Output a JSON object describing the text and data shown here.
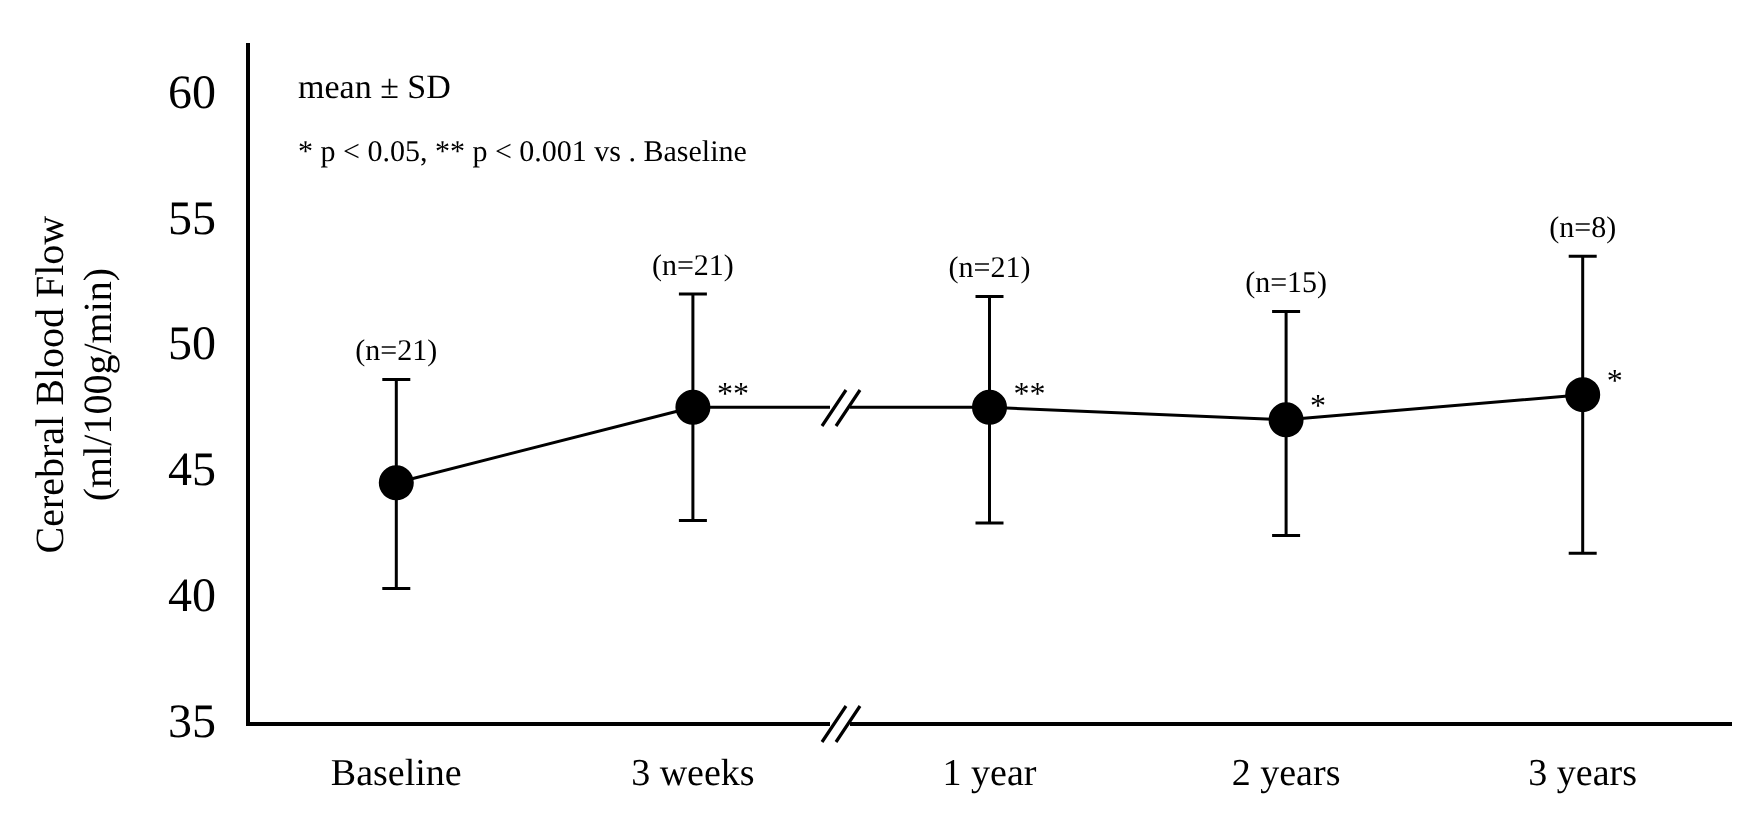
{
  "chart_data": {
    "type": "line",
    "ylabel": "Cerebral Blood Flow\n(ml/100g/min)",
    "categories": [
      "Baseline",
      "3 weeks",
      "1 year",
      "2 years",
      "3 years"
    ],
    "values": [
      44.6,
      47.6,
      47.6,
      47.1,
      48.1
    ],
    "color": "#000000",
    "errors": [
      [
        40.4,
        48.7
      ],
      [
        43.1,
        52.1
      ],
      [
        43.0,
        52.0
      ],
      [
        42.5,
        51.4
      ],
      [
        41.8,
        53.6
      ]
    ],
    "ylim": [
      35,
      62
    ],
    "yticks": [
      35,
      40,
      45,
      50,
      55,
      60
    ],
    "grid": false,
    "legend": false,
    "marker": "circle",
    "line_style": "solid",
    "annotations": [
      "mean ± SD",
      "* p < 0.05, ** p < 0.001 vs . Baseline",
      {
        "text": "(n=21)",
        "x": "Baseline",
        "y": 48.7
      },
      {
        "text": "(n=21)",
        "x": "3 weeks",
        "y": 52.1
      },
      {
        "text": "(n=21)",
        "x": "1 year",
        "y": 52.0
      },
      {
        "text": "(n=15)",
        "x": "2 years",
        "y": 51.4
      },
      {
        "text": "(n=8)",
        "x": "3 years",
        "y": 53.6
      },
      {
        "text": "**",
        "x": "3 weeks",
        "y": 47.6
      },
      {
        "text": "**",
        "x": "1 year",
        "y": 47.6
      },
      {
        "text": "*",
        "x": "2 years",
        "y": 47.1
      },
      {
        "text": "*",
        "x": "3 years",
        "y": 48.1
      }
    ]
  }
}
